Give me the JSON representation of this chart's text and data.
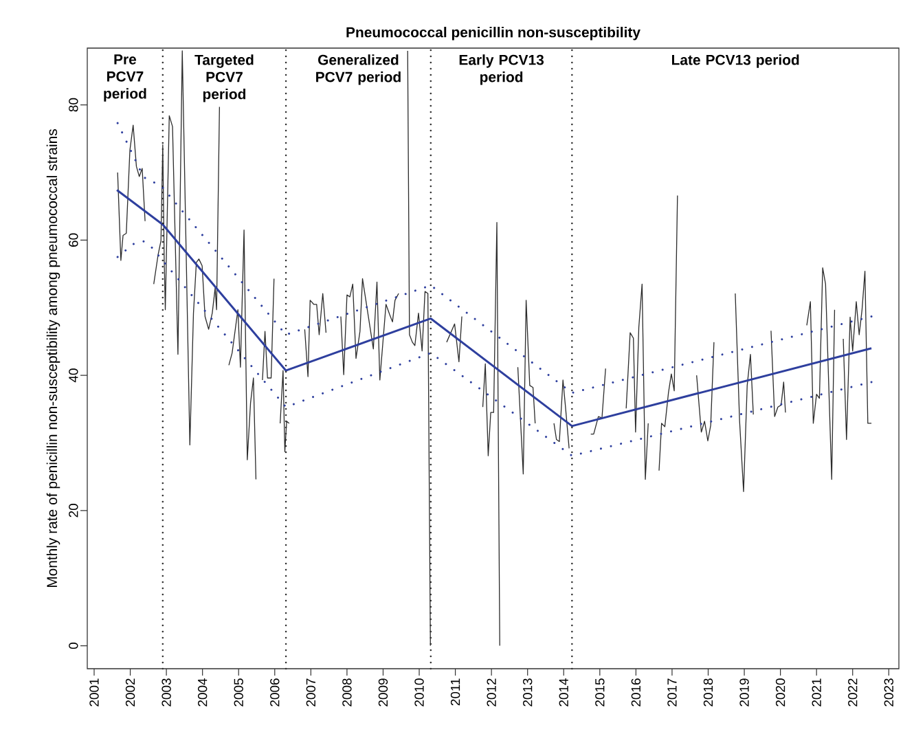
{
  "chart_data": {
    "type": "line",
    "title": "Pneumococcal penicillin non-susceptibility",
    "ylabel": "Monthly rate of penicillin non-susceptibility among pneumococcal strains",
    "xlim": [
      2000.81,
      2023.28
    ],
    "ylim": [
      -3.4,
      88.4
    ],
    "xticks": [
      2001,
      2002,
      2003,
      2004,
      2005,
      2006,
      2007,
      2008,
      2009,
      2010,
      2011,
      2012,
      2013,
      2014,
      2015,
      2016,
      2017,
      2018,
      2019,
      2020,
      2021,
      2022,
      2023
    ],
    "yticks": [
      0,
      20,
      40,
      60,
      80
    ],
    "annotations": [
      "Pre PCV7 period",
      "Targeted PCV7 period",
      "Generalized PCV7 period",
      "Early PCV13 period",
      "Late PCV13 period"
    ],
    "ref_lines": [
      {
        "axis": "x",
        "value": 2002.9,
        "color": "#333333",
        "line_style": "dotted"
      },
      {
        "axis": "x",
        "value": 2006.31,
        "color": "#333333",
        "line_style": "dotted"
      },
      {
        "axis": "x",
        "value": 2010.32,
        "color": "#333333",
        "line_style": "dotted"
      },
      {
        "axis": "x",
        "value": 2014.23,
        "color": "#333333",
        "line_style": "dotted"
      }
    ],
    "series": [
      {
        "color": "#2b2b2b",
        "line_style": "solid",
        "x": [
          2001.65,
          2001.74,
          2001.8,
          2001.89,
          2001.99,
          2002.08,
          2002.17,
          2002.25,
          2002.33,
          2002.41,
          2002.53,
          2002.65,
          2002.77,
          2002.85,
          2002.9,
          2002.94,
          2002.97,
          2003.08,
          2003.17,
          2003.32,
          2003.44,
          2003.65,
          2003.75,
          2003.83,
          2003.9,
          2003.99,
          2004.07,
          2004.17,
          2004.27,
          2004.35,
          2004.39,
          2004.47,
          2004.6,
          2004.73,
          2004.82,
          2004.98,
          2005.05,
          2005.15,
          2005.24,
          2005.33,
          2005.41,
          2005.48,
          2005.57,
          2005.66,
          2005.73,
          2005.8,
          2005.9,
          2005.98,
          2006.06,
          2006.15,
          2006.23,
          2006.28,
          2006.33,
          2006.4,
          2006.6,
          2006.83,
          2006.92,
          2006.98,
          2007.08,
          2007.16,
          2007.23,
          2007.33,
          2007.42,
          2007.62,
          2007.83,
          2007.91,
          2008.0,
          2008.08,
          2008.16,
          2008.25,
          2008.36,
          2008.43,
          2008.73,
          2008.83,
          2008.91,
          2009.08,
          2009.18,
          2009.26,
          2009.33,
          2009.43,
          2009.55,
          2009.68,
          2009.73,
          2009.81,
          2009.88,
          2009.98,
          2010.08,
          2010.16,
          2010.24,
          2010.31,
          2010.55,
          2010.76,
          2010.98,
          2011.1,
          2011.18,
          2011.47,
          2011.76,
          2011.83,
          2011.91,
          2011.98,
          2012.06,
          2012.15,
          2012.23,
          2012.48,
          2012.73,
          2012.88,
          2012.96,
          2013.06,
          2013.15,
          2013.21,
          2013.47,
          2013.73,
          2013.8,
          2013.88,
          2013.98,
          2014.05,
          2014.15,
          2014.45,
          2014.75,
          2014.83,
          2014.96,
          2015.06,
          2015.16,
          2015.45,
          2015.73,
          2015.84,
          2015.93,
          2015.99,
          2016.08,
          2016.17,
          2016.26,
          2016.34,
          2016.49,
          2016.64,
          2016.71,
          2016.8,
          2016.9,
          2016.98,
          2017.06,
          2017.15,
          2017.42,
          2017.68,
          2017.81,
          2017.9,
          2017.99,
          2018.07,
          2018.16,
          2018.45,
          2018.75,
          2018.87,
          2018.98,
          2019.08,
          2019.17,
          2019.25,
          2019.5,
          2019.74,
          2019.84,
          2019.93,
          2020.02,
          2020.09,
          2020.14,
          2020.44,
          2020.73,
          2020.83,
          2020.91,
          2021.0,
          2021.08,
          2021.17,
          2021.25,
          2021.42,
          2021.5,
          2021.62,
          2021.74,
          2021.83,
          2021.93,
          2022.0,
          2022.1,
          2022.18,
          2022.26,
          2022.34,
          2022.42,
          2022.52
        ],
        "values": [
          70,
          57,
          60.7,
          61,
          73.3,
          77,
          70.9,
          69.4,
          70.6,
          62.8,
          null,
          53.5,
          57.8,
          59.9,
          74.1,
          57.2,
          49.7,
          78.4,
          76.8,
          43.1,
          88,
          29.7,
          49.2,
          56.7,
          57.2,
          56.2,
          48.7,
          46.8,
          49.2,
          52.9,
          49.7,
          79.7,
          null,
          41.5,
          43.3,
          49.7,
          41.2,
          61.5,
          27.5,
          35.9,
          39.6,
          24.6,
          null,
          39.3,
          46.5,
          39.6,
          39.6,
          54.3,
          null,
          32.9,
          40.7,
          28.7,
          33.2,
          32.9,
          null,
          46.8,
          39.8,
          51.1,
          50.5,
          50.5,
          46,
          52.1,
          46.3,
          null,
          48.7,
          40.1,
          51.9,
          51.6,
          53.5,
          42.5,
          46.5,
          54.3,
          43.9,
          53.8,
          39.3,
          50.5,
          49,
          47.9,
          51.1,
          52.1,
          null,
          88,
          46,
          44.9,
          44.4,
          49.2,
          43.6,
          52.4,
          52.1,
          0,
          null,
          44.9,
          47.6,
          42,
          48.7,
          null,
          35.3,
          41.7,
          28.1,
          34.5,
          34.5,
          62.6,
          0,
          null,
          41.2,
          25.4,
          51.1,
          38.5,
          38.2,
          32.9,
          null,
          32.9,
          30.5,
          30.2,
          39.3,
          35.3,
          29.2,
          null,
          31.3,
          31.3,
          33.9,
          33.7,
          41,
          null,
          35.1,
          46.3,
          45.5,
          31.6,
          47.1,
          53.5,
          24.6,
          32.9,
          null,
          25.9,
          32.9,
          32.4,
          37.4,
          40.2,
          37.7,
          66.6,
          null,
          40,
          31.6,
          33.2,
          30.3,
          32.6,
          44.9,
          null,
          52.1,
          33.2,
          22.8,
          38.5,
          43.1,
          34.2,
          null,
          46.6,
          33.9,
          35.3,
          35.6,
          39,
          34.5,
          null,
          47.4,
          50.9,
          32.9,
          37.2,
          36.6,
          55.9,
          53.5,
          24.6,
          49.7,
          null,
          45.4,
          30.5,
          48.6,
          43.6,
          50.9,
          46,
          49.7,
          55.4,
          32.9,
          32.9
        ]
      },
      {
        "color": "#2e3f9e",
        "line_style": "solid",
        "x": [
          2001.63,
          2002.9,
          2006.31,
          2010.32,
          2014.23,
          2022.52
        ],
        "values": [
          67.4,
          62.3,
          40.7,
          48.4,
          32.5,
          44.0
        ]
      },
      {
        "color": "#2e3f9e",
        "line_style": "dotted",
        "x": [
          2001.65,
          2002.37,
          2002.86,
          2006.31,
          2010.32,
          2014.23,
          2022.52
        ],
        "values": [
          77.3,
          69.3,
          68.0,
          46.0,
          53.3,
          37.4,
          48.7
        ]
      },
      {
        "color": "#2e3f9e",
        "line_style": "dotted",
        "x": [
          2001.65,
          2002.08,
          2002.37,
          2002.62,
          2002.86,
          2006.31,
          2010.32,
          2014.23,
          2022.52
        ],
        "values": [
          57.5,
          59.4,
          59.8,
          58.8,
          57.2,
          35.3,
          43.3,
          28.1,
          39.0
        ]
      }
    ]
  }
}
